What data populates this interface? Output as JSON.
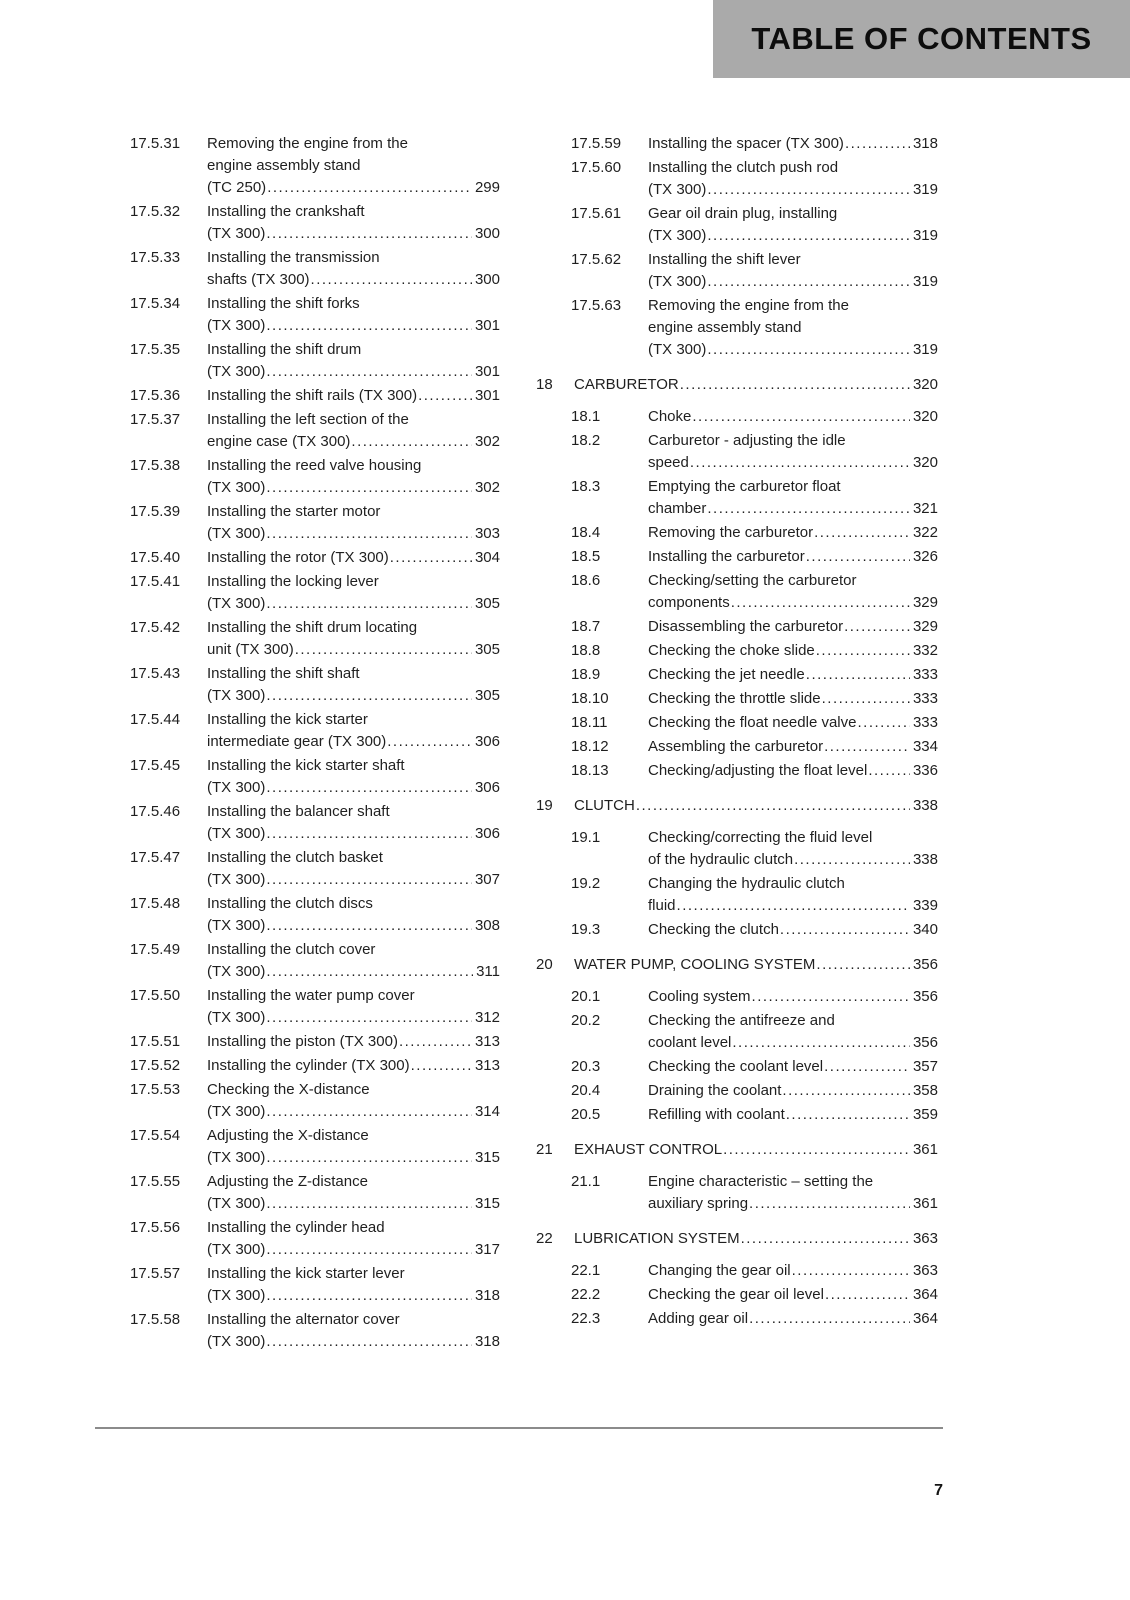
{
  "header": {
    "title": "TABLE OF CONTENTS"
  },
  "footer": {
    "page_number": "7"
  },
  "colors": {
    "header_band": "#aaaaaa",
    "rule": "#8b8b8b",
    "text": "#1f1f1f"
  },
  "toc": {
    "left_column": [
      {
        "type": "sub",
        "num": "17.5.31",
        "lines": [
          "Removing the engine from the",
          "engine assembly stand",
          "(TC 250)"
        ],
        "page": "299"
      },
      {
        "type": "sub",
        "num": "17.5.32",
        "lines": [
          "Installing the crankshaft",
          "(TX 300)"
        ],
        "page": "300"
      },
      {
        "type": "sub",
        "num": "17.5.33",
        "lines": [
          "Installing the transmission",
          "shafts (TX 300)"
        ],
        "page": "300"
      },
      {
        "type": "sub",
        "num": "17.5.34",
        "lines": [
          "Installing the shift forks",
          "(TX 300)"
        ],
        "page": "301"
      },
      {
        "type": "sub",
        "num": "17.5.35",
        "lines": [
          "Installing the shift drum",
          "(TX 300)"
        ],
        "page": "301"
      },
      {
        "type": "sub",
        "num": "17.5.36",
        "lines": [
          "Installing the shift rails (TX 300)"
        ],
        "page": "301"
      },
      {
        "type": "sub",
        "num": "17.5.37",
        "lines": [
          "Installing the left section of the",
          "engine case (TX 300)"
        ],
        "page": "302"
      },
      {
        "type": "sub",
        "num": "17.5.38",
        "lines": [
          "Installing the reed valve housing",
          "(TX 300)"
        ],
        "page": "302"
      },
      {
        "type": "sub",
        "num": "17.5.39",
        "lines": [
          "Installing the starter motor",
          "(TX 300)"
        ],
        "page": "303"
      },
      {
        "type": "sub",
        "num": "17.5.40",
        "lines": [
          "Installing the rotor (TX 300)"
        ],
        "page": "304"
      },
      {
        "type": "sub",
        "num": "17.5.41",
        "lines": [
          "Installing the locking lever",
          "(TX 300)"
        ],
        "page": "305"
      },
      {
        "type": "sub",
        "num": "17.5.42",
        "lines": [
          "Installing the shift drum locating",
          "unit (TX 300)"
        ],
        "page": "305"
      },
      {
        "type": "sub",
        "num": "17.5.43",
        "lines": [
          "Installing the shift shaft",
          "(TX 300)"
        ],
        "page": "305"
      },
      {
        "type": "sub",
        "num": "17.5.44",
        "lines": [
          "Installing the kick starter",
          "intermediate gear (TX 300)"
        ],
        "page": "306"
      },
      {
        "type": "sub",
        "num": "17.5.45",
        "lines": [
          "Installing the kick starter shaft",
          "(TX 300)"
        ],
        "page": "306"
      },
      {
        "type": "sub",
        "num": "17.5.46",
        "lines": [
          "Installing the balancer shaft",
          "(TX 300)"
        ],
        "page": "306"
      },
      {
        "type": "sub",
        "num": "17.5.47",
        "lines": [
          "Installing the clutch basket",
          "(TX 300)"
        ],
        "page": "307"
      },
      {
        "type": "sub",
        "num": "17.5.48",
        "lines": [
          "Installing the clutch discs",
          "(TX 300)"
        ],
        "page": "308"
      },
      {
        "type": "sub",
        "num": "17.5.49",
        "lines": [
          "Installing the clutch cover",
          "(TX 300)"
        ],
        "page": "311"
      },
      {
        "type": "sub",
        "num": "17.5.50",
        "lines": [
          "Installing the water pump cover",
          "(TX 300)"
        ],
        "page": "312"
      },
      {
        "type": "sub",
        "num": "17.5.51",
        "lines": [
          "Installing the piston (TX 300)"
        ],
        "page": "313"
      },
      {
        "type": "sub",
        "num": "17.5.52",
        "lines": [
          "Installing the cylinder (TX 300)"
        ],
        "page": "313"
      },
      {
        "type": "sub",
        "num": "17.5.53",
        "lines": [
          "Checking the X-distance",
          "(TX 300)"
        ],
        "page": "314"
      },
      {
        "type": "sub",
        "num": "17.5.54",
        "lines": [
          "Adjusting the X-distance",
          "(TX 300)"
        ],
        "page": "315"
      },
      {
        "type": "sub",
        "num": "17.5.55",
        "lines": [
          "Adjusting the Z-distance",
          "(TX 300)"
        ],
        "page": "315"
      },
      {
        "type": "sub",
        "num": "17.5.56",
        "lines": [
          "Installing the cylinder head",
          "(TX 300)"
        ],
        "page": "317"
      },
      {
        "type": "sub",
        "num": "17.5.57",
        "lines": [
          "Installing the kick starter lever",
          "(TX 300)"
        ],
        "page": "318"
      },
      {
        "type": "sub",
        "num": "17.5.58",
        "lines": [
          "Installing the alternator cover",
          "(TX 300)"
        ],
        "page": "318"
      }
    ],
    "right_column": [
      {
        "type": "sub",
        "num": "17.5.59",
        "lines": [
          "Installing the spacer (TX 300)"
        ],
        "page": "318"
      },
      {
        "type": "sub",
        "num": "17.5.60",
        "lines": [
          "Installing the clutch push rod",
          "(TX 300)"
        ],
        "page": "319"
      },
      {
        "type": "sub",
        "num": "17.5.61",
        "lines": [
          "Gear oil drain plug, installing",
          "(TX 300)"
        ],
        "page": "319"
      },
      {
        "type": "sub",
        "num": "17.5.62",
        "lines": [
          "Installing the shift lever",
          "(TX 300)"
        ],
        "page": "319"
      },
      {
        "type": "sub",
        "num": "17.5.63",
        "lines": [
          "Removing the engine from the",
          "engine assembly stand",
          "(TX 300)"
        ],
        "page": "319"
      },
      {
        "type": "chapter",
        "num": "18",
        "title": "CARBURETOR",
        "page": "320"
      },
      {
        "type": "sub",
        "num": "18.1",
        "lines": [
          "Choke"
        ],
        "page": "320"
      },
      {
        "type": "sub",
        "num": "18.2",
        "lines": [
          "Carburetor - adjusting the idle",
          "speed"
        ],
        "page": "320"
      },
      {
        "type": "sub",
        "num": "18.3",
        "lines": [
          "Emptying the carburetor float",
          "chamber"
        ],
        "page": "321"
      },
      {
        "type": "sub",
        "num": "18.4",
        "lines": [
          "Removing the carburetor"
        ],
        "page": "322"
      },
      {
        "type": "sub",
        "num": "18.5",
        "lines": [
          "Installing the carburetor"
        ],
        "page": "326"
      },
      {
        "type": "sub",
        "num": "18.6",
        "lines": [
          "Checking/setting the carburetor",
          "components"
        ],
        "page": "329"
      },
      {
        "type": "sub",
        "num": "18.7",
        "lines": [
          "Disassembling the carburetor"
        ],
        "page": "329"
      },
      {
        "type": "sub",
        "num": "18.8",
        "lines": [
          "Checking the choke slide"
        ],
        "page": "332"
      },
      {
        "type": "sub",
        "num": "18.9",
        "lines": [
          "Checking the jet needle"
        ],
        "page": "333"
      },
      {
        "type": "sub",
        "num": "18.10",
        "lines": [
          "Checking the throttle slide"
        ],
        "page": "333"
      },
      {
        "type": "sub",
        "num": "18.11",
        "lines": [
          "Checking the float needle valve"
        ],
        "page": "333"
      },
      {
        "type": "sub",
        "num": "18.12",
        "lines": [
          "Assembling the carburetor"
        ],
        "page": "334"
      },
      {
        "type": "sub",
        "num": "18.13",
        "lines": [
          "Checking/adjusting the float level"
        ],
        "page": "336"
      },
      {
        "type": "chapter",
        "num": "19",
        "title": "CLUTCH",
        "page": "338"
      },
      {
        "type": "sub",
        "num": "19.1",
        "lines": [
          "Checking/correcting the fluid level",
          "of the hydraulic clutch"
        ],
        "page": "338"
      },
      {
        "type": "sub",
        "num": "19.2",
        "lines": [
          "Changing the hydraulic clutch",
          "fluid"
        ],
        "page": "339"
      },
      {
        "type": "sub",
        "num": "19.3",
        "lines": [
          "Checking the clutch"
        ],
        "page": "340"
      },
      {
        "type": "chapter",
        "num": "20",
        "title": "WATER PUMP, COOLING SYSTEM",
        "page": "356"
      },
      {
        "type": "sub",
        "num": "20.1",
        "lines": [
          "Cooling system"
        ],
        "page": "356"
      },
      {
        "type": "sub",
        "num": "20.2",
        "lines": [
          "Checking the antifreeze and",
          "coolant level"
        ],
        "page": "356"
      },
      {
        "type": "sub",
        "num": "20.3",
        "lines": [
          "Checking the coolant level"
        ],
        "page": "357"
      },
      {
        "type": "sub",
        "num": "20.4",
        "lines": [
          "Draining the coolant"
        ],
        "page": "358"
      },
      {
        "type": "sub",
        "num": "20.5",
        "lines": [
          "Refilling with coolant"
        ],
        "page": "359"
      },
      {
        "type": "chapter",
        "num": "21",
        "title": "EXHAUST CONTROL",
        "page": "361"
      },
      {
        "type": "sub",
        "num": "21.1",
        "lines": [
          "Engine characteristic – setting the",
          "auxiliary spring"
        ],
        "page": "361"
      },
      {
        "type": "chapter",
        "num": "22",
        "title": "LUBRICATION SYSTEM",
        "page": "363"
      },
      {
        "type": "sub",
        "num": "22.1",
        "lines": [
          "Changing the gear oil"
        ],
        "page": "363"
      },
      {
        "type": "sub",
        "num": "22.2",
        "lines": [
          "Checking the gear oil level"
        ],
        "page": "364"
      },
      {
        "type": "sub",
        "num": "22.3",
        "lines": [
          "Adding gear oil"
        ],
        "page": "364"
      }
    ]
  }
}
